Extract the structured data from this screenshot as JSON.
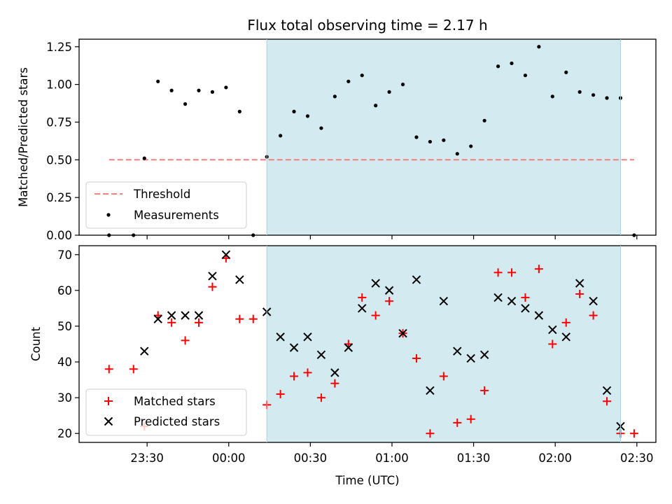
{
  "chart_data": [
    {
      "type": "scatter",
      "title": "Flux total observing time = 2.17 h",
      "xlabel": "",
      "ylabel": "Matched/Predicted stars",
      "ylim": [
        0,
        1.3
      ],
      "yticks": [
        0.0,
        0.25,
        0.5,
        0.75,
        1.0,
        1.25
      ],
      "ytick_labels": [
        "0.00",
        "0.25",
        "0.50",
        "0.75",
        "1.00",
        "1.25"
      ],
      "xlim": [
        "23:05",
        "02:37"
      ],
      "xticks": [
        "23:30",
        "00:00",
        "00:30",
        "01:00",
        "01:30",
        "02:00",
        "02:30"
      ],
      "shaded_region": {
        "x_start": "00:14",
        "x_end": "02:24",
        "color": "#d3eaf0"
      },
      "threshold": {
        "name": "Threshold",
        "value": 0.5,
        "x_start": "23:16",
        "x_end": "02:29",
        "color": "#f47f7f"
      },
      "series": [
        {
          "name": "Measurements",
          "marker": "dot",
          "color": "#000000",
          "x": [
            "23:16",
            "23:25",
            "23:29",
            "23:34",
            "23:39",
            "23:44",
            "23:49",
            "23:54",
            "23:59",
            "00:04",
            "00:09",
            "00:14",
            "00:19",
            "00:24",
            "00:29",
            "00:34",
            "00:39",
            "00:44",
            "00:49",
            "00:54",
            "00:59",
            "01:04",
            "01:09",
            "01:14",
            "01:19",
            "01:24",
            "01:29",
            "01:34",
            "01:39",
            "01:44",
            "01:49",
            "01:54",
            "01:59",
            "02:04",
            "02:09",
            "02:14",
            "02:19",
            "02:24",
            "02:29"
          ],
          "y": [
            0.0,
            0.0,
            0.51,
            1.02,
            0.96,
            0.87,
            0.96,
            0.95,
            0.98,
            0.82,
            0.0,
            0.52,
            0.66,
            0.82,
            0.79,
            0.71,
            0.92,
            1.02,
            1.06,
            0.86,
            0.95,
            1.0,
            0.65,
            0.62,
            0.63,
            0.54,
            0.59,
            0.76,
            1.12,
            1.14,
            1.06,
            1.25,
            0.92,
            1.08,
            0.95,
            0.93,
            0.91,
            0.91,
            0.0
          ]
        }
      ],
      "legend": {
        "placement": "lower-left",
        "entries": [
          "Threshold",
          "Measurements"
        ]
      },
      "grid": false
    },
    {
      "type": "scatter",
      "title": "",
      "xlabel": "Time (UTC)",
      "ylabel": "Count",
      "ylim": [
        17.5,
        72.5
      ],
      "yticks": [
        20,
        30,
        40,
        50,
        60,
        70
      ],
      "ytick_labels": [
        "20",
        "30",
        "40",
        "50",
        "60",
        "70"
      ],
      "xlim": [
        "23:05",
        "02:37"
      ],
      "xticks": [
        "23:30",
        "00:00",
        "00:30",
        "01:00",
        "01:30",
        "02:00",
        "02:30"
      ],
      "xtick_labels": [
        "23:30",
        "00:00",
        "00:30",
        "01:00",
        "01:30",
        "02:00",
        "02:30"
      ],
      "shaded_region": {
        "x_start": "00:14",
        "x_end": "02:24",
        "color": "#d3eaf0"
      },
      "series": [
        {
          "name": "Matched stars",
          "marker": "plus",
          "color": "#ff0000",
          "x": [
            "23:16",
            "23:25",
            "23:29",
            "23:34",
            "23:39",
            "23:44",
            "23:49",
            "23:54",
            "23:59",
            "00:04",
            "00:09",
            "00:14",
            "00:19",
            "00:24",
            "00:29",
            "00:34",
            "00:39",
            "00:44",
            "00:49",
            "00:54",
            "00:59",
            "01:04",
            "01:09",
            "01:14",
            "01:19",
            "01:24",
            "01:29",
            "01:34",
            "01:39",
            "01:44",
            "01:49",
            "01:54",
            "01:59",
            "02:04",
            "02:09",
            "02:14",
            "02:19",
            "02:24",
            "02:29"
          ],
          "y": [
            38,
            38,
            22,
            53,
            51,
            46,
            51,
            61,
            69,
            52,
            52,
            28,
            31,
            36,
            37,
            30,
            34,
            45,
            58,
            53,
            57,
            48,
            41,
            20,
            36,
            23,
            24,
            32,
            65,
            65,
            58,
            66,
            45,
            51,
            59,
            53,
            29,
            20,
            20
          ]
        },
        {
          "name": "Predicted stars",
          "marker": "x",
          "color": "#000000",
          "x": [
            "23:29",
            "23:34",
            "23:39",
            "23:44",
            "23:49",
            "23:54",
            "23:59",
            "00:04",
            "00:14",
            "00:19",
            "00:24",
            "00:29",
            "00:34",
            "00:39",
            "00:44",
            "00:49",
            "00:54",
            "00:59",
            "01:04",
            "01:09",
            "01:14",
            "01:19",
            "01:24",
            "01:29",
            "01:34",
            "01:39",
            "01:44",
            "01:49",
            "01:54",
            "01:59",
            "02:04",
            "02:09",
            "02:14",
            "02:19",
            "02:24"
          ],
          "y": [
            43,
            52,
            53,
            53,
            53,
            64,
            70,
            63,
            54,
            47,
            44,
            47,
            42,
            37,
            44,
            55,
            62,
            60,
            48,
            63,
            32,
            57,
            43,
            41,
            42,
            58,
            57,
            55,
            53,
            49,
            47,
            62,
            57,
            32,
            22
          ]
        }
      ],
      "legend": {
        "placement": "lower-left",
        "entries": [
          "Matched stars",
          "Predicted stars"
        ]
      },
      "grid": false
    }
  ]
}
